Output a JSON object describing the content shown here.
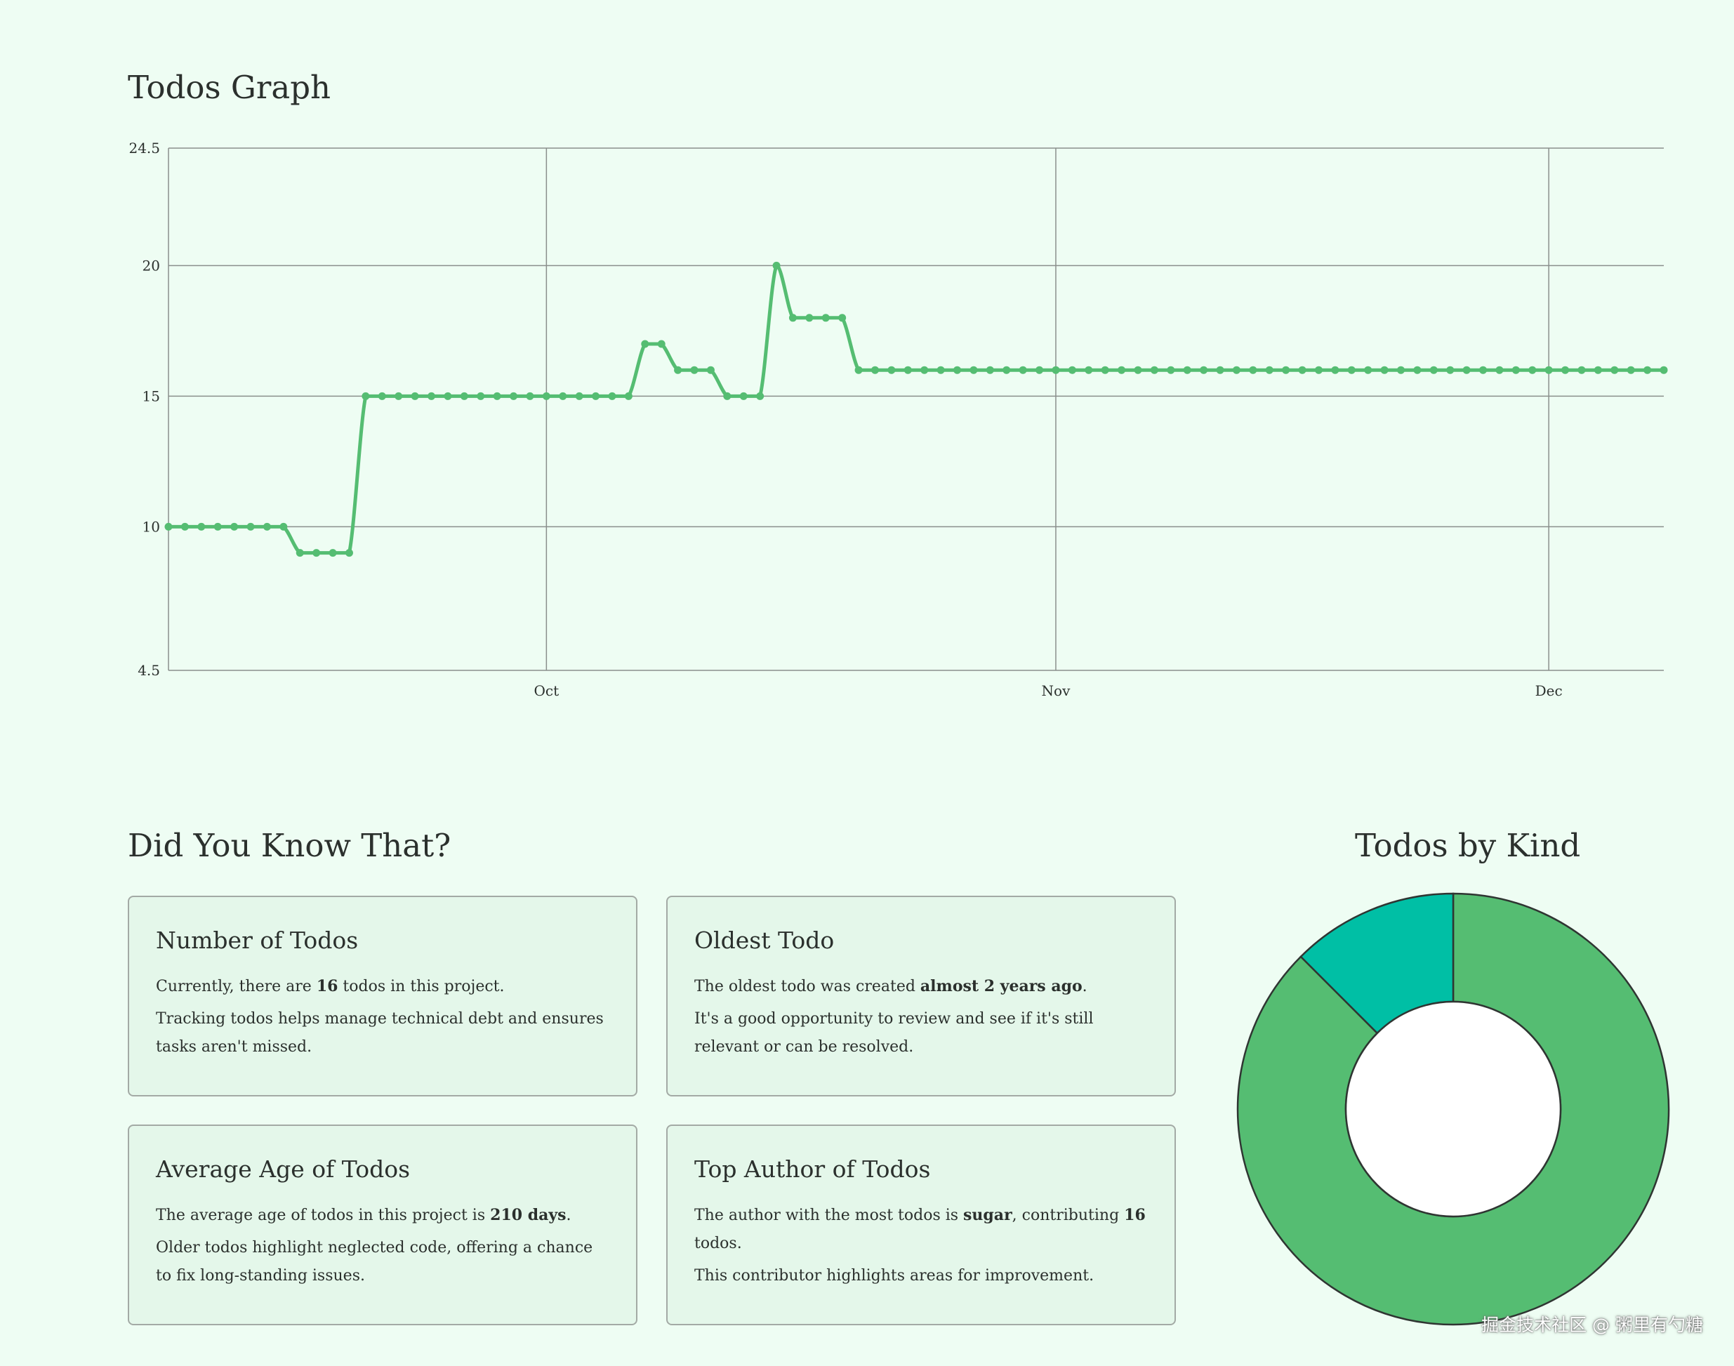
{
  "graph": {
    "title": "Todos Graph"
  },
  "did_you_know": {
    "title": "Did You Know That?",
    "cards": [
      {
        "title": "Number of Todos",
        "p1_pre": "Currently, there are ",
        "p1_bold": "16",
        "p1_post": " todos in this project.",
        "p2": "Tracking todos helps manage technical debt and ensures tasks aren't missed."
      },
      {
        "title": "Oldest Todo",
        "p1_pre": "The oldest todo was created ",
        "p1_bold": "almost 2 years ago",
        "p1_post": ".",
        "p2": "It's a good opportunity to review and see if it's still relevant or can be resolved."
      },
      {
        "title": "Average Age of Todos",
        "p1_pre": "The average age of todos in this project is ",
        "p1_bold": "210 days",
        "p1_post": ".",
        "p2": "Older todos highlight neglected code, offering a chance to fix long-standing issues."
      },
      {
        "title": "Top Author of Todos",
        "p1_pre": "The author with the most todos is ",
        "p1_bold": "sugar",
        "p1_mid": ", contributing ",
        "p1_bold2": "16",
        "p1_post": " todos.",
        "p2": "This contributor highlights areas for improvement."
      }
    ]
  },
  "kind": {
    "title": "Todos by Kind"
  },
  "watermark": "掘金技术社区 @ 粥里有勺糖",
  "chart_data": [
    {
      "type": "line",
      "x_start": "2024-09-08",
      "x_end": "2024-12-08",
      "x_ticks": [
        {
          "label": "Oct",
          "date": "2024-10-01"
        },
        {
          "label": "Nov",
          "date": "2024-11-01"
        },
        {
          "label": "Dec",
          "date": "2024-12-01"
        }
      ],
      "y_ticks": [
        4.5,
        10,
        15,
        20,
        24.5
      ],
      "ylim": [
        4.5,
        24.5
      ],
      "grid": true,
      "color": "#55bd72",
      "series": [
        {
          "values": [
            10,
            10,
            10,
            10,
            10,
            10,
            10,
            10,
            9,
            9,
            9,
            9,
            15,
            15,
            15,
            15,
            15,
            15,
            15,
            15,
            15,
            15,
            15,
            15,
            15,
            15,
            15,
            15,
            15,
            17,
            17,
            16,
            16,
            16,
            15,
            15,
            15,
            20,
            18,
            18,
            18,
            18,
            16,
            16,
            16,
            16,
            16,
            16,
            16,
            16,
            16,
            16,
            16,
            16,
            16,
            16,
            16,
            16,
            16,
            16,
            16,
            16,
            16,
            16,
            16,
            16,
            16,
            16,
            16,
            16,
            16,
            16,
            16,
            16,
            16,
            16,
            16,
            16,
            16,
            16,
            16,
            16,
            16,
            16,
            16,
            16,
            16,
            16,
            16,
            16,
            16,
            16
          ]
        }
      ]
    },
    {
      "type": "pie",
      "donut": true,
      "slices": [
        {
          "value": 14,
          "color": "#55bd72"
        },
        {
          "value": 2,
          "color": "#00bfa5"
        }
      ]
    }
  ]
}
